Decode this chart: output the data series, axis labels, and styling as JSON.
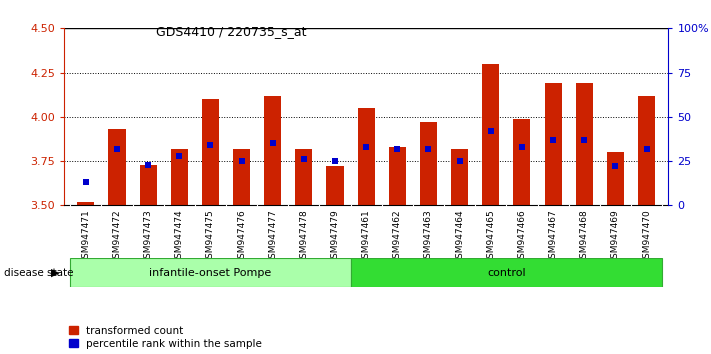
{
  "title": "GDS4410 / 220735_s_at",
  "samples": [
    "GSM947471",
    "GSM947472",
    "GSM947473",
    "GSM947474",
    "GSM947475",
    "GSM947476",
    "GSM947477",
    "GSM947478",
    "GSM947479",
    "GSM947461",
    "GSM947462",
    "GSM947463",
    "GSM947464",
    "GSM947465",
    "GSM947466",
    "GSM947467",
    "GSM947468",
    "GSM947469",
    "GSM947470"
  ],
  "red_values": [
    3.52,
    3.93,
    3.73,
    3.82,
    4.1,
    3.82,
    4.12,
    3.82,
    3.72,
    4.05,
    3.83,
    3.97,
    3.82,
    4.3,
    3.99,
    4.19,
    4.19,
    3.8,
    4.12
  ],
  "blue_values": [
    3.63,
    3.82,
    3.73,
    3.78,
    3.84,
    3.75,
    3.85,
    3.76,
    3.75,
    3.83,
    3.82,
    3.82,
    3.75,
    3.92,
    3.83,
    3.87,
    3.87,
    3.72,
    3.82
  ],
  "group1_name": "infantile-onset Pompe",
  "group2_name": "control",
  "group1_indices": [
    0,
    8
  ],
  "group2_indices": [
    9,
    18
  ],
  "group1_color": "#aaffaa",
  "group2_color": "#33dd33",
  "bar_color": "#cc2200",
  "blue_color": "#0000cc",
  "ylim_left": [
    3.5,
    4.5
  ],
  "ylim_right": [
    0,
    100
  ],
  "yticks_left": [
    3.5,
    3.75,
    4.0,
    4.25,
    4.5
  ],
  "yticks_right": [
    0,
    25,
    50,
    75,
    100
  ],
  "ytick_labels_right": [
    "0",
    "25",
    "50",
    "75",
    "100%"
  ],
  "bar_width": 0.55,
  "legend_items": [
    "transformed count",
    "percentile rank within the sample"
  ],
  "disease_state_label": "disease state"
}
